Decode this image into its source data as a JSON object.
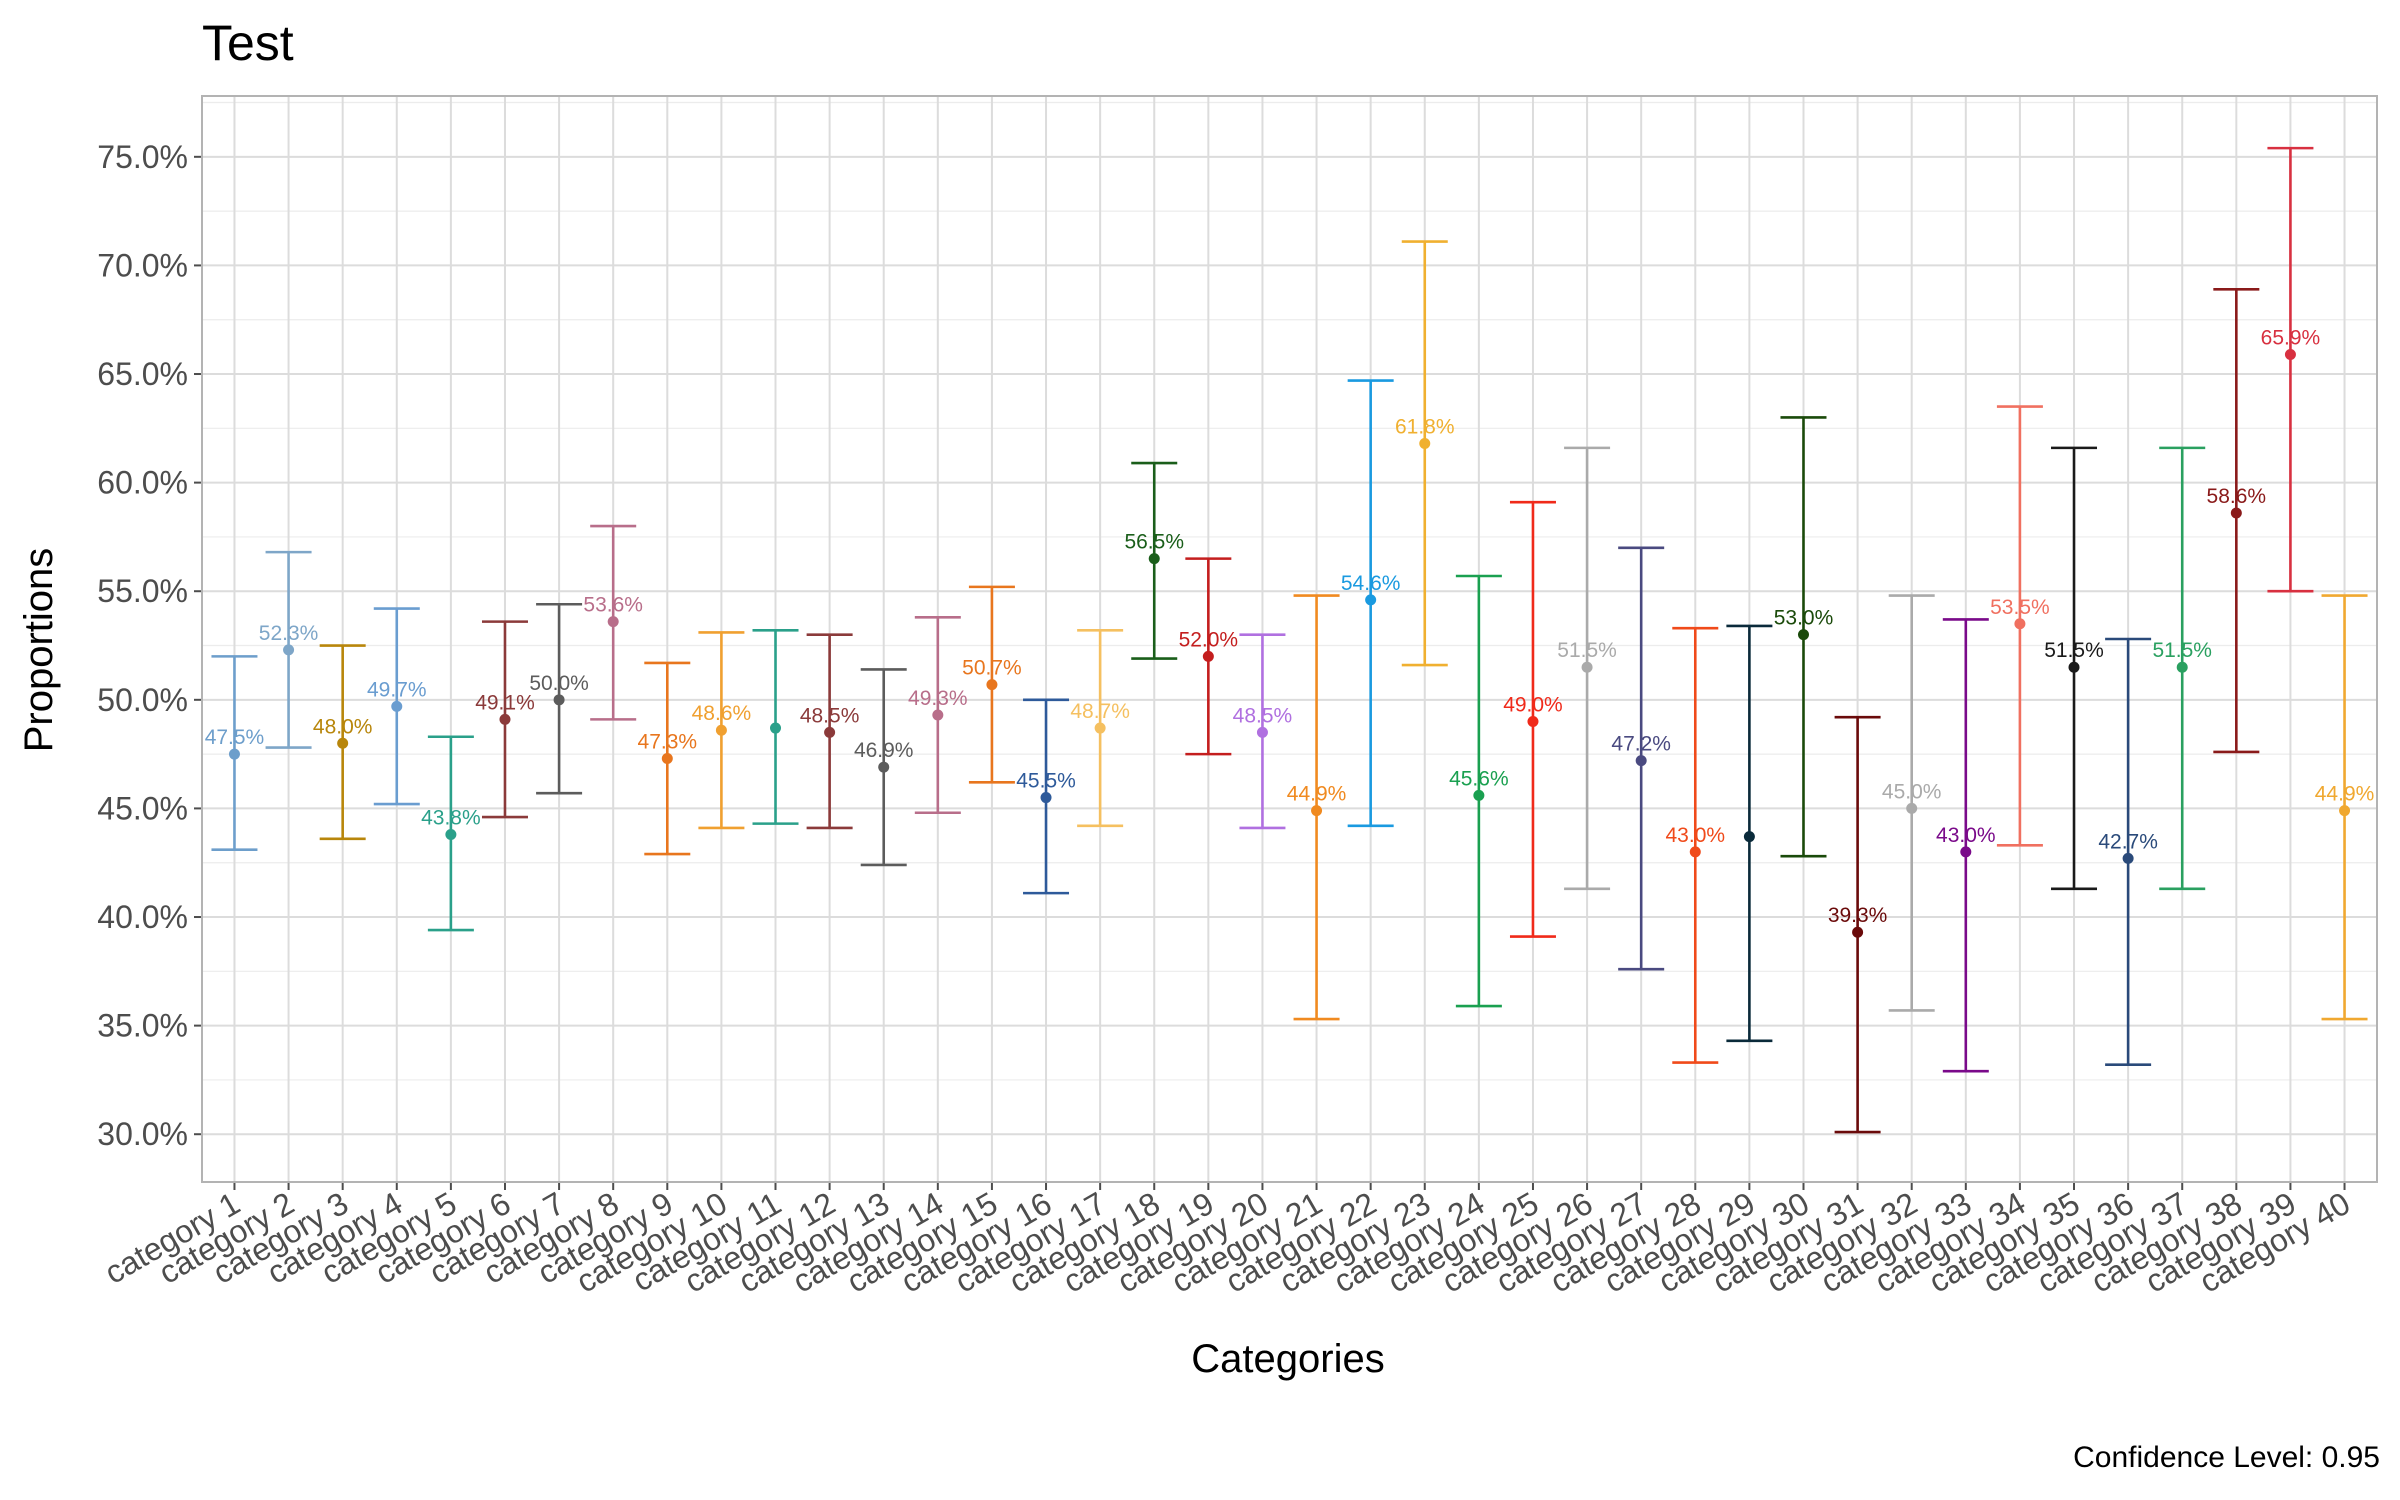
{
  "chart_data": {
    "type": "errorbar",
    "title": "Test",
    "xlabel": "Categories",
    "ylabel": "Proportions",
    "caption": "Confidence Level: 0.95",
    "ylim": [
      0.278,
      0.778
    ],
    "y_ticks": [
      "30.0%",
      "35.0%",
      "40.0%",
      "45.0%",
      "50.0%",
      "55.0%",
      "60.0%",
      "65.0%",
      "70.0%",
      "75.0%"
    ],
    "y_tick_values": [
      0.3,
      0.35,
      0.4,
      0.45,
      0.5,
      0.55,
      0.6,
      0.65,
      0.7,
      0.75
    ],
    "grid": true,
    "legend": "none",
    "points": [
      {
        "category": "category 1",
        "value": 0.475,
        "lower": 0.431,
        "upper": 0.52,
        "label": "47.5%",
        "color": "#6d9ecb"
      },
      {
        "category": "category 2",
        "value": 0.523,
        "lower": 0.478,
        "upper": 0.568,
        "label": "52.3%",
        "color": "#7ea6c8"
      },
      {
        "category": "category 3",
        "value": 0.48,
        "lower": 0.436,
        "upper": 0.525,
        "label": "48.0%",
        "color": "#b8860b"
      },
      {
        "category": "category 4",
        "value": 0.497,
        "lower": 0.452,
        "upper": 0.542,
        "label": "49.7%",
        "color": "#6a9dd0"
      },
      {
        "category": "category 5",
        "value": 0.438,
        "lower": 0.394,
        "upper": 0.483,
        "label": "43.8%",
        "color": "#2aa08a"
      },
      {
        "category": "category 6",
        "value": 0.491,
        "lower": 0.446,
        "upper": 0.536,
        "label": "49.1%",
        "color": "#8b3a3a"
      },
      {
        "category": "category 7",
        "value": 0.5,
        "lower": 0.457,
        "upper": 0.544,
        "label": "50.0%",
        "color": "#5c5c5c"
      },
      {
        "category": "category 8",
        "value": 0.536,
        "lower": 0.491,
        "upper": 0.58,
        "label": "53.6%",
        "color": "#b86e8a"
      },
      {
        "category": "category 9",
        "value": 0.473,
        "lower": 0.429,
        "upper": 0.517,
        "label": "47.3%",
        "color": "#e8761e"
      },
      {
        "category": "category 10",
        "value": 0.486,
        "lower": 0.441,
        "upper": 0.531,
        "label": "48.6%",
        "color": "#f0a030"
      },
      {
        "category": "category 11",
        "value": 0.487,
        "lower": 0.443,
        "upper": 0.532,
        "label": "",
        "color": "#2aa08a"
      },
      {
        "category": "category 12",
        "value": 0.485,
        "lower": 0.441,
        "upper": 0.53,
        "label": "48.5%",
        "color": "#8b3a3a"
      },
      {
        "category": "category 13",
        "value": 0.469,
        "lower": 0.424,
        "upper": 0.514,
        "label": "46.9%",
        "color": "#5c5c5c"
      },
      {
        "category": "category 14",
        "value": 0.493,
        "lower": 0.448,
        "upper": 0.538,
        "label": "49.3%",
        "color": "#b86e8a"
      },
      {
        "category": "category 15",
        "value": 0.507,
        "lower": 0.462,
        "upper": 0.552,
        "label": "50.7%",
        "color": "#e8761e"
      },
      {
        "category": "category 16",
        "value": 0.455,
        "lower": 0.411,
        "upper": 0.5,
        "label": "45.5%",
        "color": "#2e5a9a"
      },
      {
        "category": "category 17",
        "value": 0.487,
        "lower": 0.442,
        "upper": 0.532,
        "label": "48.7%",
        "color": "#f5c060"
      },
      {
        "category": "category 18",
        "value": 0.565,
        "lower": 0.519,
        "upper": 0.609,
        "label": "56.5%",
        "color": "#1a5e1a"
      },
      {
        "category": "category 19",
        "value": 0.52,
        "lower": 0.475,
        "upper": 0.565,
        "label": "52.0%",
        "color": "#c41e1e"
      },
      {
        "category": "category 20",
        "value": 0.485,
        "lower": 0.441,
        "upper": 0.53,
        "label": "48.5%",
        "color": "#b070e0"
      },
      {
        "category": "category 21",
        "value": 0.449,
        "lower": 0.353,
        "upper": 0.548,
        "label": "44.9%",
        "color": "#f08a20"
      },
      {
        "category": "category 22",
        "value": 0.546,
        "lower": 0.442,
        "upper": 0.647,
        "label": "54.6%",
        "color": "#1a9ae0"
      },
      {
        "category": "category 23",
        "value": 0.618,
        "lower": 0.516,
        "upper": 0.711,
        "label": "61.8%",
        "color": "#f0b030"
      },
      {
        "category": "category 24",
        "value": 0.456,
        "lower": 0.359,
        "upper": 0.557,
        "label": "45.6%",
        "color": "#1aa050"
      },
      {
        "category": "category 25",
        "value": 0.49,
        "lower": 0.391,
        "upper": 0.591,
        "label": "49.0%",
        "color": "#f02a1a"
      },
      {
        "category": "category 26",
        "value": 0.515,
        "lower": 0.413,
        "upper": 0.616,
        "label": "51.5%",
        "color": "#aaaaaa"
      },
      {
        "category": "category 27",
        "value": 0.472,
        "lower": 0.376,
        "upper": 0.57,
        "label": "47.2%",
        "color": "#4a4a80"
      },
      {
        "category": "category 28",
        "value": 0.43,
        "lower": 0.333,
        "upper": 0.533,
        "label": "43.0%",
        "color": "#f04a1a"
      },
      {
        "category": "category 29",
        "value": 0.437,
        "lower": 0.343,
        "upper": 0.534,
        "label": "",
        "color": "#0a2a3a"
      },
      {
        "category": "category 30",
        "value": 0.53,
        "lower": 0.428,
        "upper": 0.63,
        "label": "53.0%",
        "color": "#1a4a0a"
      },
      {
        "category": "category 31",
        "value": 0.393,
        "lower": 0.301,
        "upper": 0.492,
        "label": "39.3%",
        "color": "#6a0a0a"
      },
      {
        "category": "category 32",
        "value": 0.45,
        "lower": 0.357,
        "upper": 0.548,
        "label": "45.0%",
        "color": "#aaaaaa"
      },
      {
        "category": "category 33",
        "value": 0.43,
        "lower": 0.329,
        "upper": 0.537,
        "label": "43.0%",
        "color": "#7a0a8a"
      },
      {
        "category": "category 34",
        "value": 0.535,
        "lower": 0.433,
        "upper": 0.635,
        "label": "53.5%",
        "color": "#f07060"
      },
      {
        "category": "category 35",
        "value": 0.515,
        "lower": 0.413,
        "upper": 0.616,
        "label": "51.5%",
        "color": "#1a1a1a"
      },
      {
        "category": "category 36",
        "value": 0.427,
        "lower": 0.332,
        "upper": 0.528,
        "label": "42.7%",
        "color": "#2a4a7a"
      },
      {
        "category": "category 37",
        "value": 0.515,
        "lower": 0.413,
        "upper": 0.616,
        "label": "51.5%",
        "color": "#2aa060"
      },
      {
        "category": "category 38",
        "value": 0.586,
        "lower": 0.476,
        "upper": 0.689,
        "label": "58.6%",
        "color": "#8a1a1a"
      },
      {
        "category": "category 39",
        "value": 0.659,
        "lower": 0.55,
        "upper": 0.754,
        "label": "65.9%",
        "color": "#d83040"
      },
      {
        "category": "category 40",
        "value": 0.449,
        "lower": 0.353,
        "upper": 0.548,
        "label": "44.9%",
        "color": "#f0a830"
      }
    ]
  }
}
